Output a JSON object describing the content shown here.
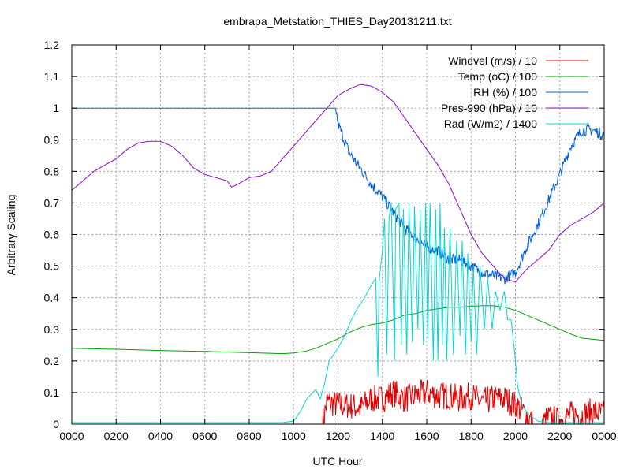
{
  "chart_data": {
    "type": "line",
    "title": "embrapa_Metstation_THIES_Day20131211.txt",
    "xlabel": "UTC Hour",
    "ylabel": "Arbitrary Scaling",
    "xlim": [
      0,
      24
    ],
    "ylim": [
      0,
      1.2
    ],
    "grid": true,
    "legend_position": "top-right",
    "x_ticks": [
      0,
      2,
      4,
      6,
      8,
      10,
      12,
      14,
      16,
      18,
      20,
      22,
      24
    ],
    "x_tick_labels": [
      "0000",
      "0200",
      "0400",
      "0600",
      "0800",
      "1000",
      "1200",
      "1400",
      "1600",
      "1800",
      "2000",
      "2200",
      "0000"
    ],
    "y_ticks": [
      0,
      0.1,
      0.2,
      0.3,
      0.4,
      0.5,
      0.6,
      0.7,
      0.8,
      0.9,
      1,
      1.1,
      1.2
    ],
    "y_tick_labels": [
      "0",
      "0.1",
      "0.2",
      "0.3",
      "0.4",
      "0.5",
      "0.6",
      "0.7",
      "0.8",
      "0.9",
      "1",
      "1.1",
      "1.2"
    ],
    "series": [
      {
        "name": "Windvel (m/s) / 10",
        "color": "#e00000",
        "noisy": true,
        "points": [
          [
            0,
            0
          ],
          [
            11.3,
            0
          ],
          [
            11.5,
            0.07
          ],
          [
            12.0,
            0.06
          ],
          [
            12.5,
            0.06
          ],
          [
            13.0,
            0.05
          ],
          [
            13.5,
            0.08
          ],
          [
            14.0,
            0.08
          ],
          [
            14.5,
            0.1
          ],
          [
            15.0,
            0.08
          ],
          [
            15.5,
            0.09
          ],
          [
            16.0,
            0.1
          ],
          [
            16.5,
            0.09
          ],
          [
            17.0,
            0.09
          ],
          [
            17.5,
            0.08
          ],
          [
            18.0,
            0.09
          ],
          [
            18.5,
            0.07
          ],
          [
            19.0,
            0.08
          ],
          [
            19.5,
            0.08
          ],
          [
            20.0,
            0.06
          ],
          [
            20.5,
            0.03
          ],
          [
            20.8,
            0
          ],
          [
            21.2,
            0
          ],
          [
            21.5,
            0.02
          ],
          [
            22.0,
            0.01
          ],
          [
            22.5,
            0.03
          ],
          [
            23.0,
            0.03
          ],
          [
            23.5,
            0.04
          ],
          [
            24.0,
            0.03
          ]
        ]
      },
      {
        "name": "Temp (oC) / 100",
        "color": "#00a000",
        "noisy": false,
        "points": [
          [
            0,
            0.24
          ],
          [
            2,
            0.237
          ],
          [
            4,
            0.233
          ],
          [
            6,
            0.23
          ],
          [
            8,
            0.226
          ],
          [
            9.5,
            0.223
          ],
          [
            10,
            0.225
          ],
          [
            10.5,
            0.23
          ],
          [
            11,
            0.24
          ],
          [
            11.5,
            0.255
          ],
          [
            12,
            0.27
          ],
          [
            12.5,
            0.29
          ],
          [
            13,
            0.305
          ],
          [
            13.5,
            0.315
          ],
          [
            14,
            0.32
          ],
          [
            14.5,
            0.33
          ],
          [
            15,
            0.345
          ],
          [
            15.5,
            0.35
          ],
          [
            16,
            0.36
          ],
          [
            16.5,
            0.365
          ],
          [
            17,
            0.37
          ],
          [
            17.5,
            0.37
          ],
          [
            18,
            0.373
          ],
          [
            18.5,
            0.375
          ],
          [
            19,
            0.375
          ],
          [
            19.5,
            0.37
          ],
          [
            20,
            0.36
          ],
          [
            20.5,
            0.345
          ],
          [
            21,
            0.33
          ],
          [
            21.5,
            0.315
          ],
          [
            22,
            0.3
          ],
          [
            22.5,
            0.285
          ],
          [
            23,
            0.272
          ],
          [
            24,
            0.265
          ]
        ]
      },
      {
        "name": "RH (%) / 100",
        "color": "#0060e0",
        "noisy": true,
        "points": [
          [
            0,
            1
          ],
          [
            11.9,
            1
          ],
          [
            12.0,
            0.95
          ],
          [
            12.5,
            0.86
          ],
          [
            13.0,
            0.81
          ],
          [
            13.5,
            0.76
          ],
          [
            14.0,
            0.72
          ],
          [
            14.5,
            0.67
          ],
          [
            15.0,
            0.62
          ],
          [
            15.5,
            0.59
          ],
          [
            16.0,
            0.56
          ],
          [
            16.5,
            0.55
          ],
          [
            17.0,
            0.52
          ],
          [
            17.5,
            0.52
          ],
          [
            18.0,
            0.5
          ],
          [
            18.5,
            0.48
          ],
          [
            19.0,
            0.47
          ],
          [
            19.5,
            0.46
          ],
          [
            20.0,
            0.48
          ],
          [
            20.5,
            0.56
          ],
          [
            21.0,
            0.63
          ],
          [
            21.5,
            0.71
          ],
          [
            22.0,
            0.79
          ],
          [
            22.5,
            0.88
          ],
          [
            23.0,
            0.93
          ],
          [
            23.5,
            0.93
          ],
          [
            24.0,
            0.915
          ]
        ]
      },
      {
        "name": "Pres-990 (hPa) / 10",
        "color": "#9400d3",
        "noisy": false,
        "points": [
          [
            0,
            0.74
          ],
          [
            0.5,
            0.77
          ],
          [
            1,
            0.8
          ],
          [
            1.5,
            0.82
          ],
          [
            2,
            0.84
          ],
          [
            2.5,
            0.87
          ],
          [
            3,
            0.89
          ],
          [
            3.5,
            0.895
          ],
          [
            4,
            0.895
          ],
          [
            4.5,
            0.88
          ],
          [
            5,
            0.85
          ],
          [
            5.5,
            0.81
          ],
          [
            6,
            0.79
          ],
          [
            6.5,
            0.78
          ],
          [
            7,
            0.77
          ],
          [
            7.2,
            0.75
          ],
          [
            7.5,
            0.76
          ],
          [
            8,
            0.78
          ],
          [
            8.5,
            0.785
          ],
          [
            9,
            0.8
          ],
          [
            9.5,
            0.84
          ],
          [
            10,
            0.88
          ],
          [
            10.5,
            0.92
          ],
          [
            11,
            0.96
          ],
          [
            11.5,
            1.0
          ],
          [
            12,
            1.04
          ],
          [
            12.5,
            1.06
          ],
          [
            13,
            1.075
          ],
          [
            13.5,
            1.07
          ],
          [
            14,
            1.05
          ],
          [
            14.5,
            1.02
          ],
          [
            15,
            0.97
          ],
          [
            15.5,
            0.92
          ],
          [
            16,
            0.87
          ],
          [
            16.5,
            0.82
          ],
          [
            17,
            0.76
          ],
          [
            17.5,
            0.68
          ],
          [
            18,
            0.6
          ],
          [
            18.5,
            0.54
          ],
          [
            19,
            0.5
          ],
          [
            19.5,
            0.46
          ],
          [
            20,
            0.45
          ],
          [
            20.5,
            0.49
          ],
          [
            21,
            0.52
          ],
          [
            21.5,
            0.55
          ],
          [
            22,
            0.6
          ],
          [
            22.5,
            0.63
          ],
          [
            23,
            0.65
          ],
          [
            23.5,
            0.67
          ],
          [
            24,
            0.7
          ]
        ]
      },
      {
        "name": "Rad (W/m2) / 1400",
        "color": "#00d8d8",
        "noisy": false,
        "points": [
          [
            0,
            0.005
          ],
          [
            9.5,
            0.005
          ],
          [
            10,
            0.01
          ],
          [
            10.3,
            0.04
          ],
          [
            10.6,
            0.08
          ],
          [
            11,
            0.11
          ],
          [
            11.2,
            0.08
          ],
          [
            11.4,
            0.13
          ],
          [
            11.6,
            0.2
          ],
          [
            12,
            0.24
          ],
          [
            12.3,
            0.28
          ],
          [
            12.6,
            0.33
          ],
          [
            12.9,
            0.37
          ],
          [
            13.2,
            0.4
          ],
          [
            13.5,
            0.44
          ],
          [
            13.7,
            0.46
          ],
          [
            13.8,
            0.15
          ],
          [
            13.85,
            0.45
          ],
          [
            14.0,
            0.55
          ],
          [
            14.1,
            0.65
          ],
          [
            14.2,
            0.22
          ],
          [
            14.3,
            0.65
          ],
          [
            14.4,
            0.7
          ],
          [
            14.55,
            0.2
          ],
          [
            14.6,
            0.68
          ],
          [
            14.75,
            0.7
          ],
          [
            14.85,
            0.25
          ],
          [
            14.95,
            0.68
          ],
          [
            15.1,
            0.22
          ],
          [
            15.2,
            0.7
          ],
          [
            15.35,
            0.26
          ],
          [
            15.45,
            0.69
          ],
          [
            15.6,
            0.3
          ],
          [
            15.7,
            0.68
          ],
          [
            15.85,
            0.25
          ],
          [
            15.95,
            0.7
          ],
          [
            16.05,
            0.27
          ],
          [
            16.15,
            0.7
          ],
          [
            16.3,
            0.2
          ],
          [
            16.4,
            0.68
          ],
          [
            16.5,
            0.2
          ],
          [
            16.6,
            0.7
          ],
          [
            16.7,
            0.25
          ],
          [
            16.8,
            0.62
          ],
          [
            16.9,
            0.2
          ],
          [
            17.05,
            0.62
          ],
          [
            17.2,
            0.22
          ],
          [
            17.35,
            0.58
          ],
          [
            17.5,
            0.28
          ],
          [
            17.6,
            0.58
          ],
          [
            17.75,
            0.22
          ],
          [
            17.85,
            0.54
          ],
          [
            18.0,
            0.26
          ],
          [
            18.1,
            0.5
          ],
          [
            18.25,
            0.22
          ],
          [
            18.4,
            0.5
          ],
          [
            18.6,
            0.3
          ],
          [
            18.75,
            0.46
          ],
          [
            18.95,
            0.3
          ],
          [
            19.1,
            0.42
          ],
          [
            19.3,
            0.36
          ],
          [
            19.5,
            0.42
          ],
          [
            19.65,
            0.33
          ],
          [
            19.8,
            0.33
          ],
          [
            19.9,
            0.27
          ],
          [
            20.0,
            0.2
          ],
          [
            20.1,
            0.12
          ],
          [
            20.3,
            0.06
          ],
          [
            20.6,
            0.03
          ],
          [
            21.0,
            0.01
          ],
          [
            21.5,
            0.005
          ],
          [
            24,
            0.005
          ]
        ]
      }
    ]
  }
}
